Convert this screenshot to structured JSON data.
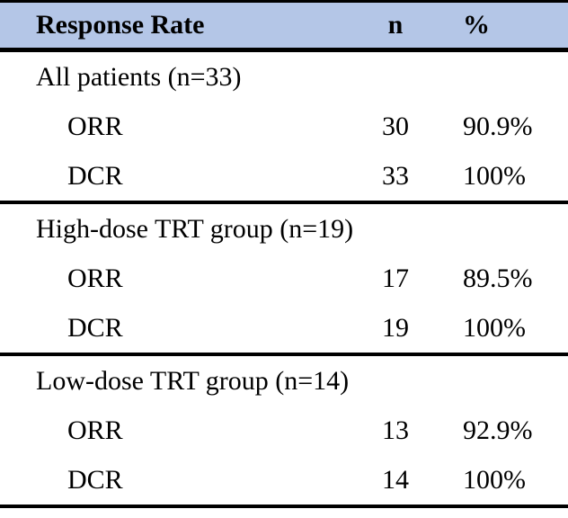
{
  "colors": {
    "header_bg": "#b4c6e7",
    "rule": "#000000",
    "text": "#000000",
    "page_bg": "#ffffff"
  },
  "table": {
    "columns": [
      "Response Rate",
      "n",
      "%"
    ],
    "sections": [
      {
        "label": "All patients (n=33)",
        "rows": [
          {
            "metric": "ORR",
            "n": "30",
            "pct": "90.9%"
          },
          {
            "metric": "DCR",
            "n": "33",
            "pct": "100%"
          }
        ]
      },
      {
        "label": "High-dose TRT group (n=19)",
        "rows": [
          {
            "metric": "ORR",
            "n": "17",
            "pct": "89.5%"
          },
          {
            "metric": "DCR",
            "n": "19",
            "pct": "100%"
          }
        ]
      },
      {
        "label": "Low-dose TRT group (n=14)",
        "rows": [
          {
            "metric": "ORR",
            "n": "13",
            "pct": "92.9%"
          },
          {
            "metric": "DCR",
            "n": "14",
            "pct": "100%"
          }
        ]
      }
    ]
  },
  "chart_data": {
    "type": "table",
    "title": "Response Rate",
    "columns": [
      "Response Rate",
      "n",
      "%"
    ],
    "rows": [
      [
        "All patients (n=33)",
        "",
        ""
      ],
      [
        "ORR",
        30,
        "90.9%"
      ],
      [
        "DCR",
        33,
        "100%"
      ],
      [
        "High-dose TRT group (n=19)",
        "",
        ""
      ],
      [
        "ORR",
        17,
        "89.5%"
      ],
      [
        "DCR",
        19,
        "100%"
      ],
      [
        "Low-dose TRT group (n=14)",
        "",
        ""
      ],
      [
        "ORR",
        13,
        "92.9%"
      ],
      [
        "DCR",
        14,
        "100%"
      ]
    ]
  }
}
